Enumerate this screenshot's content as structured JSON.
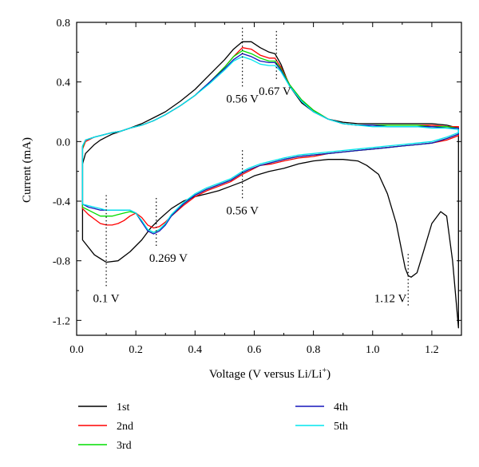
{
  "chart_data": {
    "type": "line",
    "title": "",
    "xlabel": "Voltage (V versus Li/Li",
    "xlabel_sup": "+",
    "xlabel_close": ")",
    "ylabel": "Current (mA)",
    "xlim": [
      0.0,
      1.3
    ],
    "ylim": [
      -1.3,
      0.8
    ],
    "x_ticks": [
      0.0,
      0.2,
      0.4,
      0.6,
      0.8,
      1.0,
      1.2
    ],
    "x_tick_labels": [
      "0.0",
      "0.2",
      "0.4",
      "0.6",
      "0.8",
      "1.0",
      "1.2"
    ],
    "y_ticks": [
      0.8,
      0.4,
      0.0,
      -0.4,
      -0.8,
      -1.2
    ],
    "y_tick_labels": [
      "0.8",
      "0.4",
      "0.0",
      "-0.4",
      "-0.8",
      "-1.2"
    ],
    "grid": false,
    "legend_position": "bottom",
    "annotations": [
      {
        "label": "0.56 V",
        "x": 0.56,
        "line_from": 0.37,
        "line_to": 0.78
      },
      {
        "label": "0.67 V",
        "x": 0.675,
        "line_from": 0.42,
        "line_to": 0.75
      },
      {
        "label": "0.56 V",
        "x": 0.56,
        "line_from": -0.38,
        "line_to": -0.05
      },
      {
        "label": "0.269 V",
        "x": 0.269,
        "line_from": -0.7,
        "line_to": -0.37
      },
      {
        "label": "0.1 V",
        "x": 0.1,
        "line_from": -0.97,
        "line_to": -0.36
      },
      {
        "label": "1.12 V",
        "x": 1.12,
        "line_from": -1.1,
        "line_to": -0.74
      }
    ],
    "series": [
      {
        "name": "1st",
        "color": "#000000",
        "x": [
          0.02,
          0.03,
          0.06,
          0.08,
          0.1,
          0.12,
          0.15,
          0.18,
          0.22,
          0.26,
          0.3,
          0.35,
          0.4,
          0.45,
          0.5,
          0.53,
          0.56,
          0.59,
          0.62,
          0.65,
          0.67,
          0.69,
          0.72,
          0.76,
          0.8,
          0.85,
          0.9,
          0.95,
          1.0,
          1.05,
          1.1,
          1.15,
          1.2,
          1.25,
          1.29,
          1.29,
          1.27,
          1.25,
          1.23,
          1.2,
          1.17,
          1.15,
          1.13,
          1.12,
          1.11,
          1.1,
          1.08,
          1.05,
          1.02,
          0.98,
          0.95,
          0.9,
          0.85,
          0.8,
          0.75,
          0.7,
          0.65,
          0.6,
          0.56,
          0.52,
          0.48,
          0.44,
          0.4,
          0.36,
          0.32,
          0.28,
          0.25,
          0.22,
          0.18,
          0.14,
          0.1,
          0.06,
          0.02,
          0.02
        ],
        "y": [
          -0.15,
          -0.08,
          -0.02,
          0.01,
          0.03,
          0.05,
          0.07,
          0.09,
          0.12,
          0.16,
          0.2,
          0.27,
          0.35,
          0.45,
          0.55,
          0.62,
          0.67,
          0.67,
          0.63,
          0.6,
          0.59,
          0.52,
          0.37,
          0.26,
          0.2,
          0.15,
          0.13,
          0.12,
          0.12,
          0.12,
          0.12,
          0.12,
          0.12,
          0.11,
          0.09,
          -1.25,
          -0.8,
          -0.5,
          -0.47,
          -0.55,
          -0.75,
          -0.88,
          -0.91,
          -0.9,
          -0.85,
          -0.75,
          -0.55,
          -0.35,
          -0.22,
          -0.16,
          -0.13,
          -0.12,
          -0.12,
          -0.13,
          -0.15,
          -0.18,
          -0.2,
          -0.23,
          -0.27,
          -0.3,
          -0.33,
          -0.35,
          -0.37,
          -0.4,
          -0.45,
          -0.52,
          -0.58,
          -0.66,
          -0.74,
          -0.8,
          -0.81,
          -0.76,
          -0.66,
          -0.15
        ]
      },
      {
        "name": "2nd",
        "color": "#ff0000",
        "x": [
          0.02,
          0.03,
          0.06,
          0.08,
          0.1,
          0.12,
          0.15,
          0.18,
          0.22,
          0.26,
          0.3,
          0.35,
          0.4,
          0.45,
          0.5,
          0.53,
          0.56,
          0.59,
          0.62,
          0.65,
          0.67,
          0.69,
          0.72,
          0.76,
          0.8,
          0.85,
          0.9,
          0.95,
          1.0,
          1.05,
          1.1,
          1.15,
          1.2,
          1.25,
          1.29,
          1.29,
          1.25,
          1.2,
          1.15,
          1.1,
          1.05,
          1.0,
          0.95,
          0.9,
          0.85,
          0.8,
          0.75,
          0.7,
          0.66,
          0.62,
          0.58,
          0.56,
          0.52,
          0.48,
          0.44,
          0.4,
          0.36,
          0.32,
          0.3,
          0.28,
          0.26,
          0.24,
          0.22,
          0.2,
          0.18,
          0.16,
          0.14,
          0.12,
          0.1,
          0.08,
          0.06,
          0.04,
          0.02,
          0.02
        ],
        "y": [
          -0.05,
          0.0,
          0.03,
          0.04,
          0.05,
          0.06,
          0.07,
          0.09,
          0.11,
          0.14,
          0.18,
          0.24,
          0.31,
          0.4,
          0.5,
          0.57,
          0.63,
          0.62,
          0.58,
          0.56,
          0.56,
          0.5,
          0.38,
          0.28,
          0.21,
          0.15,
          0.12,
          0.11,
          0.11,
          0.11,
          0.11,
          0.11,
          0.11,
          0.1,
          0.1,
          0.04,
          0.01,
          -0.01,
          -0.02,
          -0.03,
          -0.04,
          -0.05,
          -0.06,
          -0.07,
          -0.08,
          -0.1,
          -0.11,
          -0.13,
          -0.15,
          -0.16,
          -0.2,
          -0.22,
          -0.27,
          -0.3,
          -0.33,
          -0.37,
          -0.43,
          -0.5,
          -0.54,
          -0.57,
          -0.58,
          -0.56,
          -0.51,
          -0.48,
          -0.5,
          -0.53,
          -0.55,
          -0.56,
          -0.56,
          -0.55,
          -0.52,
          -0.49,
          -0.45,
          -0.05
        ]
      },
      {
        "name": "3rd",
        "color": "#00dd00",
        "x": [
          0.02,
          0.03,
          0.06,
          0.08,
          0.1,
          0.12,
          0.15,
          0.18,
          0.22,
          0.26,
          0.3,
          0.35,
          0.4,
          0.45,
          0.5,
          0.53,
          0.56,
          0.59,
          0.62,
          0.65,
          0.67,
          0.69,
          0.72,
          0.76,
          0.8,
          0.85,
          0.9,
          0.95,
          1.0,
          1.05,
          1.1,
          1.15,
          1.2,
          1.25,
          1.29,
          1.29,
          1.25,
          1.2,
          1.15,
          1.1,
          1.05,
          1.0,
          0.95,
          0.9,
          0.85,
          0.8,
          0.75,
          0.7,
          0.66,
          0.62,
          0.58,
          0.56,
          0.52,
          0.48,
          0.44,
          0.4,
          0.36,
          0.32,
          0.3,
          0.28,
          0.26,
          0.24,
          0.22,
          0.2,
          0.18,
          0.16,
          0.14,
          0.12,
          0.1,
          0.08,
          0.06,
          0.04,
          0.02,
          0.02
        ],
        "y": [
          -0.04,
          0.01,
          0.03,
          0.04,
          0.05,
          0.06,
          0.07,
          0.09,
          0.11,
          0.14,
          0.18,
          0.24,
          0.31,
          0.4,
          0.5,
          0.57,
          0.61,
          0.59,
          0.56,
          0.54,
          0.54,
          0.49,
          0.38,
          0.28,
          0.21,
          0.15,
          0.12,
          0.11,
          0.11,
          0.11,
          0.11,
          0.11,
          0.1,
          0.1,
          0.09,
          0.05,
          0.02,
          -0.01,
          -0.02,
          -0.03,
          -0.04,
          -0.05,
          -0.06,
          -0.07,
          -0.08,
          -0.09,
          -0.1,
          -0.12,
          -0.14,
          -0.16,
          -0.19,
          -0.21,
          -0.26,
          -0.29,
          -0.32,
          -0.36,
          -0.42,
          -0.5,
          -0.55,
          -0.59,
          -0.61,
          -0.59,
          -0.54,
          -0.48,
          -0.47,
          -0.48,
          -0.49,
          -0.5,
          -0.5,
          -0.5,
          -0.48,
          -0.46,
          -0.44,
          -0.04
        ]
      },
      {
        "name": "4th",
        "color": "#1515bb",
        "x": [
          0.02,
          0.03,
          0.06,
          0.08,
          0.1,
          0.12,
          0.15,
          0.18,
          0.22,
          0.26,
          0.3,
          0.35,
          0.4,
          0.45,
          0.5,
          0.53,
          0.56,
          0.59,
          0.62,
          0.65,
          0.67,
          0.69,
          0.72,
          0.76,
          0.8,
          0.85,
          0.9,
          0.95,
          1.0,
          1.05,
          1.1,
          1.15,
          1.2,
          1.25,
          1.29,
          1.29,
          1.25,
          1.2,
          1.15,
          1.1,
          1.05,
          1.0,
          0.95,
          0.9,
          0.85,
          0.8,
          0.75,
          0.7,
          0.66,
          0.62,
          0.58,
          0.56,
          0.52,
          0.48,
          0.44,
          0.4,
          0.36,
          0.32,
          0.3,
          0.28,
          0.26,
          0.24,
          0.22,
          0.2,
          0.18,
          0.16,
          0.14,
          0.12,
          0.1,
          0.08,
          0.06,
          0.04,
          0.02,
          0.02
        ],
        "y": [
          -0.03,
          0.01,
          0.03,
          0.04,
          0.05,
          0.06,
          0.07,
          0.09,
          0.11,
          0.14,
          0.18,
          0.24,
          0.31,
          0.4,
          0.49,
          0.55,
          0.59,
          0.57,
          0.54,
          0.53,
          0.53,
          0.48,
          0.37,
          0.27,
          0.2,
          0.15,
          0.12,
          0.11,
          0.11,
          0.1,
          0.1,
          0.1,
          0.1,
          0.09,
          0.09,
          0.05,
          0.02,
          -0.01,
          -0.02,
          -0.03,
          -0.04,
          -0.05,
          -0.06,
          -0.07,
          -0.08,
          -0.09,
          -0.1,
          -0.12,
          -0.14,
          -0.16,
          -0.19,
          -0.21,
          -0.26,
          -0.29,
          -0.32,
          -0.36,
          -0.42,
          -0.5,
          -0.56,
          -0.6,
          -0.62,
          -0.6,
          -0.54,
          -0.48,
          -0.46,
          -0.46,
          -0.46,
          -0.46,
          -0.46,
          -0.46,
          -0.45,
          -0.44,
          -0.42,
          -0.03
        ]
      },
      {
        "name": "5th",
        "color": "#00e5ee",
        "x": [
          0.02,
          0.03,
          0.06,
          0.08,
          0.1,
          0.12,
          0.15,
          0.18,
          0.22,
          0.26,
          0.3,
          0.35,
          0.4,
          0.45,
          0.5,
          0.53,
          0.56,
          0.59,
          0.62,
          0.65,
          0.67,
          0.69,
          0.72,
          0.76,
          0.8,
          0.85,
          0.9,
          0.95,
          1.0,
          1.05,
          1.1,
          1.15,
          1.2,
          1.25,
          1.29,
          1.29,
          1.25,
          1.2,
          1.15,
          1.1,
          1.05,
          1.0,
          0.95,
          0.9,
          0.85,
          0.8,
          0.75,
          0.7,
          0.66,
          0.62,
          0.58,
          0.56,
          0.52,
          0.48,
          0.44,
          0.4,
          0.36,
          0.32,
          0.3,
          0.28,
          0.26,
          0.24,
          0.22,
          0.2,
          0.18,
          0.16,
          0.14,
          0.12,
          0.1,
          0.08,
          0.06,
          0.04,
          0.02,
          0.02
        ],
        "y": [
          -0.03,
          0.01,
          0.03,
          0.04,
          0.05,
          0.06,
          0.07,
          0.09,
          0.11,
          0.14,
          0.18,
          0.24,
          0.31,
          0.39,
          0.48,
          0.54,
          0.57,
          0.55,
          0.52,
          0.51,
          0.51,
          0.47,
          0.37,
          0.27,
          0.2,
          0.15,
          0.12,
          0.11,
          0.1,
          0.1,
          0.1,
          0.1,
          0.09,
          0.09,
          0.08,
          0.06,
          0.03,
          0.0,
          -0.01,
          -0.02,
          -0.03,
          -0.04,
          -0.05,
          -0.06,
          -0.07,
          -0.08,
          -0.09,
          -0.11,
          -0.13,
          -0.15,
          -0.18,
          -0.2,
          -0.25,
          -0.28,
          -0.31,
          -0.35,
          -0.41,
          -0.49,
          -0.55,
          -0.59,
          -0.61,
          -0.59,
          -0.53,
          -0.48,
          -0.46,
          -0.46,
          -0.46,
          -0.46,
          -0.46,
          -0.45,
          -0.44,
          -0.43,
          -0.42,
          -0.03
        ]
      }
    ]
  }
}
